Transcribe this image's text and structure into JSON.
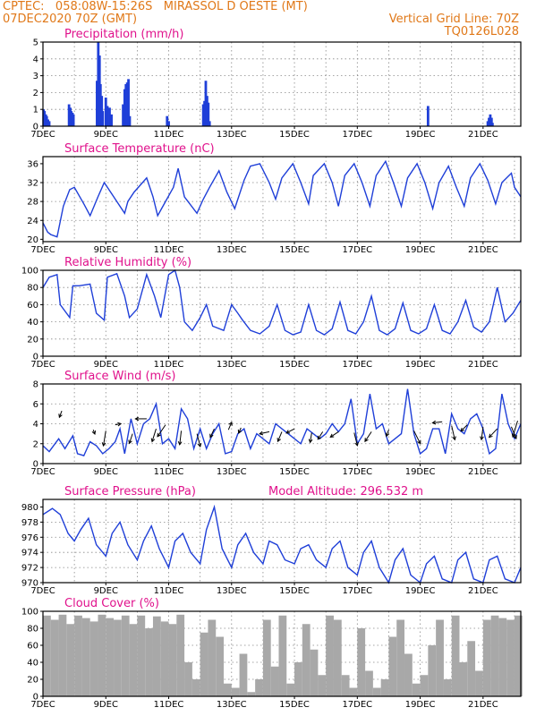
{
  "header": {
    "line1_left": "CPTEC:   058:08W-15:26S   MIRASSOL D OESTE (MT)",
    "line2_left": "07DEC2020 70Z (GMT)",
    "line2_right": "Vertical Grid Line: 70Z",
    "line3_right": "TQ0126L028"
  },
  "colors": {
    "header": "#e07818",
    "title": "#e0128c",
    "series": "#1f3fd8",
    "cloud": "#a8a8a8"
  },
  "chart_data": [
    {
      "id": "precip",
      "type": "bar",
      "title": "Precipitation (mm/h)",
      "ylim": [
        0,
        5
      ],
      "yticks": [
        "0",
        "1",
        "2",
        "3",
        "4",
        "5"
      ],
      "xlim": [
        7,
        22.2
      ],
      "xticks": [
        "7DEC",
        "9DEC",
        "11DEC",
        "13DEC",
        "15DEC",
        "17DEC",
        "19DEC",
        "21DEC"
      ],
      "x": [
        7.02,
        7.05,
        7.09,
        7.12,
        7.16,
        7.2,
        7.83,
        7.87,
        7.9,
        7.94,
        7.97,
        8.72,
        8.76,
        8.8,
        8.83,
        8.87,
        8.9,
        9.0,
        9.05,
        9.12,
        9.18,
        9.55,
        9.6,
        9.64,
        9.68,
        9.72,
        9.76,
        10.95,
        11.0,
        12.1,
        12.14,
        12.18,
        12.22,
        12.26,
        12.3,
        19.25,
        21.15,
        21.19,
        21.23,
        21.27,
        21.3
      ],
      "values": [
        1.0,
        0.9,
        0.7,
        0.6,
        0.4,
        0.3,
        1.3,
        1.1,
        0.9,
        0.8,
        0.7,
        2.7,
        5.0,
        4.2,
        2.5,
        1.8,
        0.9,
        1.7,
        1.2,
        1.1,
        0.7,
        1.3,
        2.2,
        2.5,
        2.6,
        2.8,
        0.6,
        0.6,
        0.3,
        1.3,
        1.5,
        2.7,
        1.8,
        1.4,
        0.3,
        1.2,
        0.3,
        0.5,
        0.7,
        0.5,
        0.2
      ]
    },
    {
      "id": "temp",
      "type": "line",
      "title": "Surface Temperature (nC)",
      "ylim": [
        19.5,
        37.5
      ],
      "yticks": [
        "20",
        "24",
        "28",
        "32",
        "36"
      ],
      "xlim": [
        7,
        22.2
      ],
      "xticks": [
        "7DEC",
        "9DEC",
        "11DEC",
        "13DEC",
        "15DEC",
        "17DEC",
        "19DEC",
        "21DEC"
      ],
      "x": [
        7.0,
        7.15,
        7.25,
        7.45,
        7.65,
        7.85,
        8.0,
        8.3,
        8.5,
        8.75,
        8.95,
        9.3,
        9.6,
        9.7,
        9.9,
        10.3,
        10.5,
        10.65,
        10.9,
        11.15,
        11.3,
        11.5,
        11.9,
        12.1,
        12.3,
        12.6,
        12.85,
        13.1,
        13.4,
        13.6,
        13.9,
        14.2,
        14.4,
        14.6,
        14.95,
        15.2,
        15.45,
        15.6,
        15.95,
        16.2,
        16.4,
        16.6,
        16.9,
        17.15,
        17.4,
        17.6,
        17.9,
        18.15,
        18.4,
        18.6,
        18.9,
        19.15,
        19.4,
        19.6,
        19.9,
        20.15,
        20.4,
        20.6,
        20.9,
        21.15,
        21.4,
        21.6,
        21.9,
        22.0,
        22.2
      ],
      "values": [
        23.5,
        21.5,
        21.0,
        20.5,
        27.0,
        30.5,
        31.0,
        27.5,
        25.0,
        29.0,
        32.0,
        28.5,
        25.5,
        28.0,
        30.0,
        33.0,
        29.0,
        25.0,
        28.0,
        31.0,
        35.0,
        29.0,
        25.5,
        28.5,
        31.0,
        34.5,
        30.0,
        26.5,
        32.5,
        35.5,
        36.0,
        32.0,
        28.5,
        33.0,
        36.0,
        32.0,
        27.5,
        33.5,
        36.0,
        32.0,
        27.0,
        33.5,
        36.0,
        32.0,
        27.0,
        33.5,
        36.5,
        32.0,
        27.0,
        33.0,
        36.0,
        32.0,
        26.5,
        32.0,
        35.5,
        31.0,
        27.0,
        33.0,
        36.0,
        32.5,
        27.5,
        32.0,
        34.0,
        31.0,
        29.0
      ]
    },
    {
      "id": "rh",
      "type": "line",
      "title": "Relative Humidity (%)",
      "ylim": [
        0,
        100
      ],
      "yticks": [
        "0",
        "20",
        "40",
        "60",
        "80",
        "100"
      ],
      "xlim": [
        7,
        22.2
      ],
      "xticks": [
        "7DEC",
        "9DEC",
        "11DEC",
        "13DEC",
        "15DEC",
        "17DEC",
        "19DEC",
        "21DEC"
      ],
      "x": [
        7.0,
        7.2,
        7.45,
        7.55,
        7.85,
        7.95,
        8.15,
        8.5,
        8.7,
        8.95,
        9.05,
        9.35,
        9.6,
        9.75,
        10.0,
        10.3,
        10.55,
        10.75,
        11.0,
        11.2,
        11.35,
        11.5,
        11.75,
        12.0,
        12.2,
        12.4,
        12.75,
        13.0,
        13.2,
        13.35,
        13.6,
        13.9,
        14.2,
        14.45,
        14.7,
        14.95,
        15.2,
        15.45,
        15.7,
        15.95,
        16.2,
        16.45,
        16.7,
        16.95,
        17.2,
        17.45,
        17.7,
        17.95,
        18.2,
        18.45,
        18.7,
        18.95,
        19.2,
        19.45,
        19.7,
        19.95,
        20.2,
        20.45,
        20.7,
        20.95,
        21.2,
        21.45,
        21.7,
        21.95,
        22.2
      ],
      "values": [
        80,
        92,
        95,
        60,
        45,
        82,
        82,
        84,
        50,
        42,
        92,
        96,
        70,
        45,
        55,
        95,
        70,
        45,
        95,
        100,
        80,
        40,
        30,
        45,
        60,
        35,
        30,
        60,
        50,
        42,
        30,
        26,
        35,
        60,
        30,
        25,
        28,
        60,
        30,
        25,
        32,
        63,
        30,
        26,
        40,
        70,
        30,
        25,
        32,
        62,
        30,
        26,
        32,
        60,
        30,
        26,
        40,
        65,
        34,
        28,
        40,
        80,
        40,
        50,
        65
      ]
    },
    {
      "id": "wind",
      "type": "line",
      "title": "Surface Wind (m/s)",
      "ylim": [
        0,
        8
      ],
      "yticks": [
        "0",
        "2",
        "4",
        "6",
        "8"
      ],
      "xlim": [
        7,
        22.2
      ],
      "xticks": [
        "7DEC",
        "9DEC",
        "11DEC",
        "13DEC",
        "15DEC",
        "17DEC",
        "19DEC",
        "21DEC"
      ],
      "x": [
        7.0,
        7.2,
        7.5,
        7.7,
        7.95,
        8.1,
        8.3,
        8.5,
        8.7,
        8.9,
        9.1,
        9.3,
        9.45,
        9.6,
        9.8,
        10.0,
        10.2,
        10.4,
        10.6,
        10.8,
        11.0,
        11.2,
        11.4,
        11.6,
        11.8,
        12.0,
        12.2,
        12.4,
        12.6,
        12.8,
        13.0,
        13.2,
        13.4,
        13.6,
        13.8,
        14.0,
        14.2,
        14.4,
        14.6,
        14.8,
        15.0,
        15.2,
        15.4,
        15.6,
        15.8,
        16.0,
        16.2,
        16.4,
        16.6,
        16.8,
        17.0,
        17.2,
        17.4,
        17.6,
        17.8,
        18.0,
        18.2,
        18.4,
        18.6,
        18.8,
        19.0,
        19.2,
        19.4,
        19.6,
        19.8,
        20.0,
        20.2,
        20.4,
        20.6,
        20.8,
        21.0,
        21.2,
        21.4,
        21.6,
        21.8,
        22.0,
        22.2
      ],
      "values": [
        1.8,
        1.2,
        2.5,
        1.5,
        2.8,
        1.0,
        0.8,
        2.2,
        1.8,
        1.0,
        1.5,
        2.2,
        3.5,
        1.0,
        4.5,
        2.0,
        4.0,
        4.5,
        6.0,
        2.0,
        2.5,
        1.5,
        5.5,
        4.5,
        1.5,
        3.5,
        1.5,
        3.0,
        4.0,
        1.0,
        1.2,
        3.0,
        3.5,
        1.5,
        3.0,
        2.5,
        2.0,
        4.0,
        3.5,
        3.0,
        2.5,
        2.0,
        3.5,
        3.0,
        2.5,
        3.0,
        4.0,
        3.2,
        4.0,
        6.5,
        2.0,
        3.0,
        7.0,
        3.5,
        4.0,
        2.0,
        2.5,
        3.0,
        7.5,
        3.0,
        1.0,
        1.5,
        3.5,
        3.5,
        1.0,
        5.0,
        3.5,
        3.0,
        4.5,
        5.0,
        3.5,
        1.0,
        1.5,
        7.0,
        4.0,
        2.5,
        4.0
      ]
    },
    {
      "id": "pressure",
      "type": "line",
      "title": "Surface Pressure (hPa)",
      "annotation": "Model Altitude: 296.532 m",
      "ylim": [
        970,
        981
      ],
      "yticks": [
        "970",
        "972",
        "974",
        "976",
        "978",
        "980"
      ],
      "xlim": [
        7,
        22.2
      ],
      "xticks": [
        "7DEC",
        "9DEC",
        "11DEC",
        "13DEC",
        "15DEC",
        "17DEC",
        "19DEC",
        "21DEC"
      ],
      "x": [
        7.0,
        7.3,
        7.55,
        7.8,
        8.0,
        8.2,
        8.45,
        8.7,
        9.0,
        9.2,
        9.45,
        9.7,
        10.0,
        10.2,
        10.45,
        10.7,
        11.0,
        11.2,
        11.45,
        11.7,
        12.0,
        12.2,
        12.45,
        12.7,
        13.0,
        13.2,
        13.45,
        13.7,
        14.0,
        14.2,
        14.45,
        14.7,
        15.0,
        15.2,
        15.45,
        15.7,
        16.0,
        16.2,
        16.45,
        16.7,
        17.0,
        17.2,
        17.45,
        17.7,
        18.0,
        18.2,
        18.45,
        18.7,
        19.0,
        19.2,
        19.45,
        19.7,
        20.0,
        20.2,
        20.45,
        20.7,
        21.0,
        21.2,
        21.45,
        21.7,
        22.0,
        22.2
      ],
      "values": [
        979.0,
        979.8,
        979.0,
        976.5,
        975.5,
        977.0,
        978.5,
        975.0,
        973.5,
        976.5,
        978.0,
        975.0,
        973.0,
        975.5,
        977.5,
        974.5,
        972.0,
        975.5,
        976.5,
        974.0,
        972.5,
        977.0,
        980.0,
        974.5,
        972.0,
        975.0,
        976.5,
        974.0,
        972.5,
        975.5,
        975.0,
        973.0,
        972.5,
        974.5,
        975.0,
        973.0,
        972.0,
        974.5,
        975.5,
        972.0,
        971.0,
        974.0,
        975.5,
        972.0,
        970.0,
        973.0,
        974.5,
        971.0,
        970.0,
        972.5,
        973.5,
        970.5,
        970.0,
        973.0,
        974.0,
        970.5,
        970.0,
        973.0,
        973.5,
        970.5,
        970.0,
        972.0
      ]
    },
    {
      "id": "cloud",
      "type": "bar",
      "title": "Cloud Cover (%)",
      "ylim": [
        0,
        100
      ],
      "yticks": [
        "0",
        "20",
        "40",
        "60",
        "80",
        "100"
      ],
      "xlim": [
        7,
        22.2
      ],
      "xticks": [
        "7DEC",
        "9DEC",
        "11DEC",
        "13DEC",
        "15DEC",
        "17DEC",
        "19DEC",
        "21DEC"
      ],
      "x": [
        7.0,
        7.25,
        7.5,
        7.75,
        8.0,
        8.25,
        8.5,
        8.75,
        9.0,
        9.25,
        9.5,
        9.75,
        10.0,
        10.25,
        10.5,
        10.75,
        11.0,
        11.25,
        11.5,
        11.75,
        12.0,
        12.25,
        12.5,
        12.75,
        13.0,
        13.25,
        13.5,
        13.75,
        14.0,
        14.25,
        14.5,
        14.75,
        15.0,
        15.25,
        15.5,
        15.75,
        16.0,
        16.25,
        16.5,
        16.75,
        17.0,
        17.25,
        17.5,
        17.75,
        18.0,
        18.25,
        18.5,
        18.75,
        19.0,
        19.25,
        19.5,
        19.75,
        20.0,
        20.25,
        20.5,
        20.75,
        21.0,
        21.25,
        21.5,
        21.75,
        22.0
      ],
      "values": [
        95,
        90,
        96,
        85,
        95,
        92,
        88,
        96,
        92,
        90,
        95,
        85,
        95,
        80,
        94,
        88,
        85,
        96,
        40,
        20,
        75,
        90,
        70,
        15,
        10,
        50,
        5,
        20,
        90,
        35,
        95,
        15,
        40,
        85,
        55,
        25,
        95,
        90,
        25,
        10,
        80,
        30,
        10,
        20,
        70,
        90,
        50,
        15,
        25,
        60,
        90,
        20,
        95,
        40,
        65,
        30,
        90,
        95,
        92,
        90,
        95
      ]
    }
  ]
}
